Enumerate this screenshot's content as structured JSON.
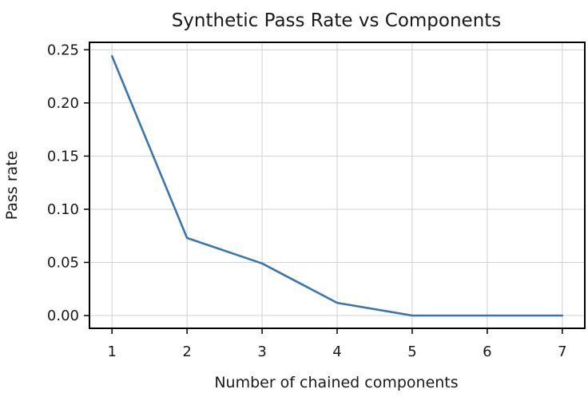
{
  "chart_data": {
    "type": "line",
    "title": "Synthetic Pass Rate vs Components",
    "xlabel": "Number of chained components",
    "ylabel": "Pass rate",
    "x": [
      1,
      2,
      3,
      4,
      5,
      6,
      7
    ],
    "series": [
      {
        "values": [
          0.244,
          0.073,
          0.049,
          0.012,
          0.0,
          0.0,
          0.0
        ],
        "color": "#3a75b0"
      }
    ],
    "xlim": [
      0.7,
      7.3
    ],
    "ylim": [
      -0.012,
      0.257
    ],
    "xticks": [
      1,
      2,
      3,
      4,
      5,
      6,
      7
    ],
    "xtick_labels": [
      "1",
      "2",
      "3",
      "4",
      "5",
      "6",
      "7"
    ],
    "yticks": [
      0.0,
      0.05,
      0.1,
      0.15,
      0.2,
      0.25
    ],
    "ytick_labels": [
      "0.00",
      "0.05",
      "0.10",
      "0.15",
      "0.20",
      "0.25"
    ],
    "grid": true,
    "legend": "none"
  }
}
